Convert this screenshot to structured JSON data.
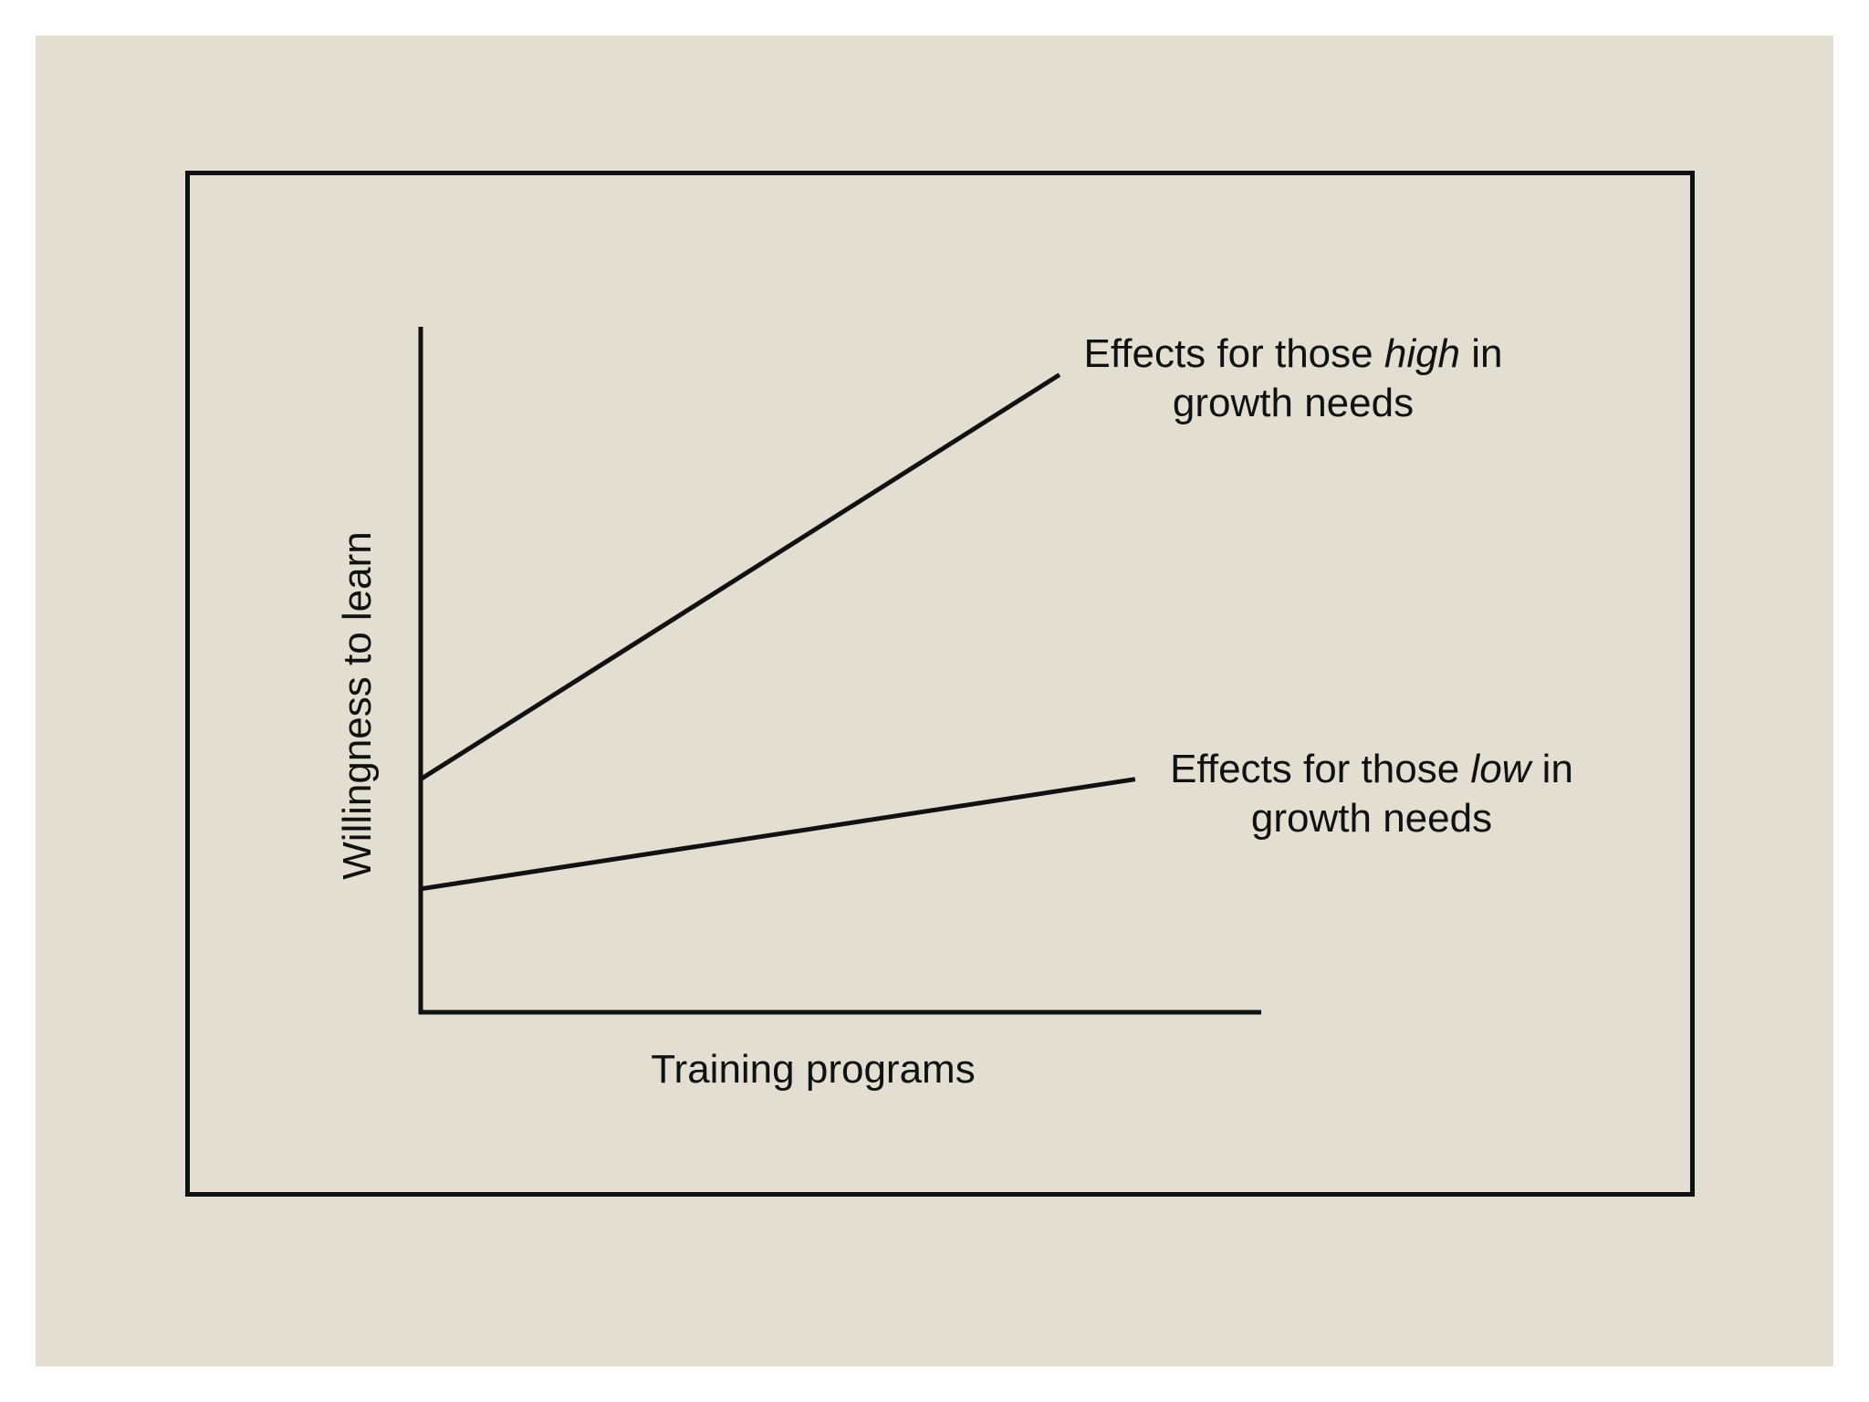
{
  "chart_data": {
    "type": "line",
    "title": "",
    "xlabel": "Training programs",
    "ylabel": "Willingness to learn",
    "grid": false,
    "axes_ticks": "none",
    "x": [
      0,
      1
    ],
    "series": [
      {
        "name": "high",
        "annotation": {
          "line1_before": "Effects for those ",
          "line1_emph": "high",
          "line1_after": " in",
          "line2": "growth needs"
        },
        "values": [
          0.34,
          0.93
        ],
        "x_end": 0.76
      },
      {
        "name": "low",
        "annotation": {
          "line1_before": "Effects for those ",
          "line1_emph": "low",
          "line1_after": " in",
          "line2": "growth needs"
        },
        "values": [
          0.18,
          0.34
        ],
        "x_end": 0.85
      }
    ],
    "xlim": [
      0,
      1
    ],
    "ylim": [
      0,
      1
    ]
  },
  "colors": {
    "panel_background": "#e2ded2",
    "ink": "#111111"
  }
}
